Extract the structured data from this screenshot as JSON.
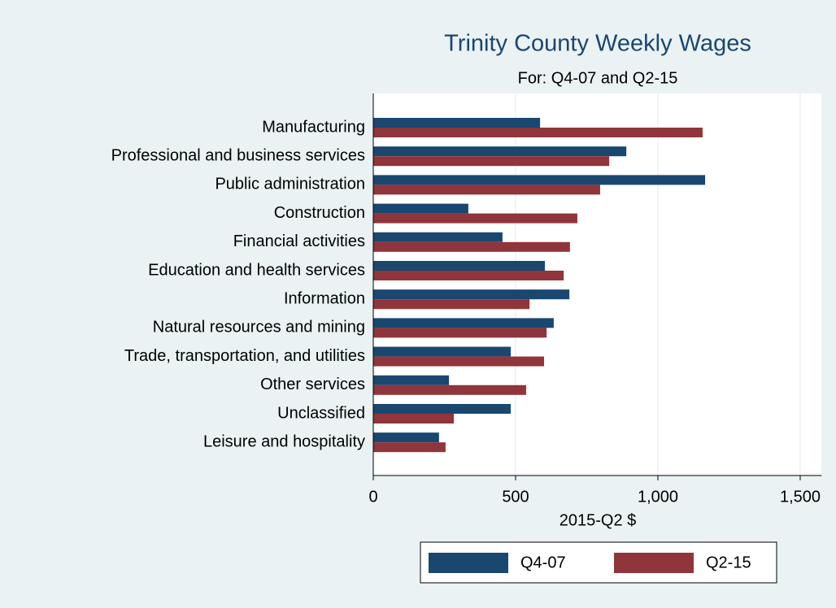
{
  "chart_data": {
    "type": "bar",
    "orientation": "horizontal",
    "title": "Trinity County Weekly Wages",
    "subtitle": "For: Q4-07 and Q2-15",
    "x_label": "2015-Q2 $",
    "categories": [
      "Manufacturing",
      "Professional and business services",
      "Public administration",
      "Construction",
      "Financial activities",
      "Education and health services",
      "Information",
      "Natural resources and mining",
      "Trade, transportation, and utilities",
      "Other services",
      "Unclassified",
      "Leisure and hospitality"
    ],
    "series": [
      {
        "name": "Q4-07",
        "color": "#1a476f",
        "values": [
          586,
          889,
          1166,
          334,
          454,
          603,
          689,
          634,
          483,
          266,
          483,
          231
        ]
      },
      {
        "name": "Q2-15",
        "color": "#90353b",
        "values": [
          1157,
          829,
          797,
          717,
          691,
          669,
          549,
          609,
          600,
          537,
          283,
          254
        ]
      }
    ],
    "xlim": [
      0,
      1575
    ],
    "xticks": [
      0,
      500,
      {
        "value": 1000,
        "label": "1,000"
      },
      {
        "value": 1500,
        "label": "1,500"
      }
    ],
    "grid": true,
    "legend": "bottom"
  }
}
